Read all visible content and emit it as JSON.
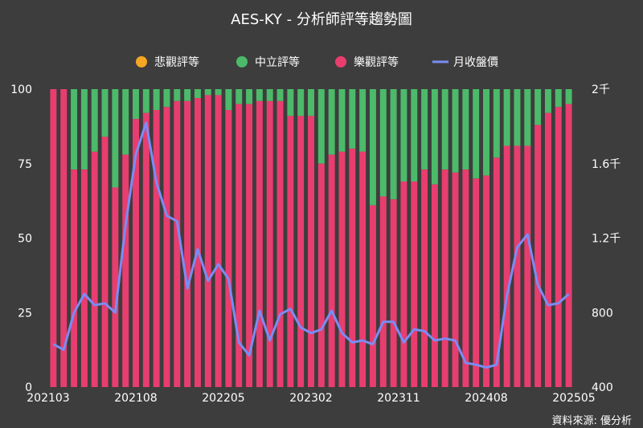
{
  "chart_data": {
    "type": "bar",
    "title": "AES-KY - 分析師評等趨勢圖",
    "source": "資料來源: 優分析",
    "legend_position": "top",
    "legend": [
      {
        "name": "悲觀評等",
        "color": "#f5a623",
        "marker": "circle"
      },
      {
        "name": "中立評等",
        "color": "#4cba6a",
        "marker": "circle"
      },
      {
        "name": "樂觀評等",
        "color": "#e83d6f",
        "marker": "circle"
      },
      {
        "name": "月收盤價",
        "color": "#7a8cf5",
        "marker": "line"
      }
    ],
    "x_tick_labels": [
      "202103",
      "202108",
      "202205",
      "202302",
      "202311",
      "202408",
      "202505"
    ],
    "y_left": {
      "range": [
        0,
        100
      ],
      "ticks": [
        "0",
        "25",
        "50",
        "75",
        "100"
      ]
    },
    "y_right": {
      "range": [
        400,
        2000
      ],
      "ticks": [
        "400",
        "800",
        "1.2千",
        "1.6千",
        "2千"
      ]
    },
    "grid": false,
    "series": [
      {
        "name": "悲觀評等",
        "values": [
          0,
          0,
          0,
          0,
          0,
          0,
          0,
          0,
          0,
          0,
          0,
          0,
          0,
          0,
          0,
          0,
          0,
          0,
          0,
          0,
          0,
          0,
          0,
          0,
          0,
          0,
          0,
          0,
          0,
          0,
          0,
          0,
          0,
          0,
          0,
          0,
          0,
          0,
          0,
          0,
          0,
          0,
          0,
          0,
          0,
          0,
          0,
          0,
          0,
          0,
          0
        ]
      },
      {
        "name": "樂觀評等",
        "values": [
          100,
          100,
          73,
          73,
          79,
          84,
          67,
          78,
          90,
          92,
          93,
          94,
          96,
          96,
          97,
          98,
          98,
          93,
          95,
          95,
          96,
          96,
          96,
          91,
          91,
          91,
          75,
          78,
          79,
          80,
          79,
          61,
          64,
          63,
          69,
          69,
          73,
          68,
          73,
          72,
          73,
          70,
          71,
          77,
          81,
          81,
          81,
          88,
          92,
          94,
          95
        ]
      },
      {
        "name": "月收盤價",
        "axis": "right",
        "values": [
          630,
          600,
          800,
          900,
          840,
          850,
          800,
          1270,
          1650,
          1820,
          1500,
          1320,
          1290,
          930,
          1140,
          970,
          1060,
          980,
          640,
          570,
          810,
          650,
          790,
          820,
          720,
          690,
          710,
          810,
          690,
          640,
          650,
          630,
          750,
          750,
          640,
          710,
          700,
          650,
          660,
          650,
          530,
          520,
          505,
          520,
          890,
          1150,
          1220,
          950,
          840,
          850,
          900
        ]
      }
    ]
  }
}
